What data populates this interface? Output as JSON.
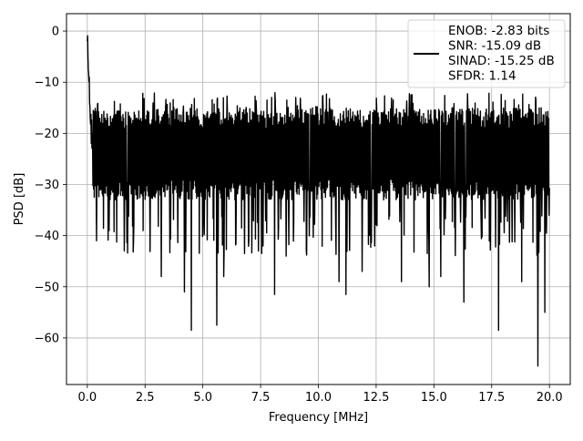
{
  "chart_data": {
    "type": "line",
    "title": "",
    "xlabel": "Frequency [MHz]",
    "ylabel": "PSD [dB]",
    "xlim": [
      -0.9,
      20.9
    ],
    "ylim": [
      -69.1,
      3.4
    ],
    "xticks": [
      0.0,
      2.5,
      5.0,
      7.5,
      10.0,
      12.5,
      15.0,
      17.5,
      20.0
    ],
    "xtick_labels": [
      "0.0",
      "2.5",
      "5.0",
      "7.5",
      "10.0",
      "12.5",
      "15.0",
      "17.5",
      "20.0"
    ],
    "yticks": [
      0,
      -10,
      -20,
      -30,
      -40,
      -50,
      -60
    ],
    "ytick_labels": [
      "0",
      "−10",
      "−20",
      "−30",
      "−40",
      "−50",
      "−60"
    ],
    "grid": true,
    "legend_position": "top-right",
    "series": [
      {
        "color": "#000000",
        "description_peak": {
          "x": 0.0,
          "y": 0.0
        },
        "noise_floor_center_db": -25,
        "noise_band_db": [
          -31,
          -17
        ],
        "x_range": [
          0.0,
          20.0
        ],
        "deep_dips": [
          {
            "x": 0.4,
            "y": -41
          },
          {
            "x": 0.95,
            "y": -39
          },
          {
            "x": 1.6,
            "y": -43
          },
          {
            "x": 2.0,
            "y": -41
          },
          {
            "x": 3.2,
            "y": -48
          },
          {
            "x": 4.2,
            "y": -51
          },
          {
            "x": 4.5,
            "y": -58.5
          },
          {
            "x": 5.6,
            "y": -57.5
          },
          {
            "x": 5.9,
            "y": -48
          },
          {
            "x": 6.8,
            "y": -43.5
          },
          {
            "x": 7.4,
            "y": -43
          },
          {
            "x": 8.1,
            "y": -51.5
          },
          {
            "x": 8.6,
            "y": -44
          },
          {
            "x": 10.9,
            "y": -49
          },
          {
            "x": 11.2,
            "y": -51.5
          },
          {
            "x": 11.9,
            "y": -47
          },
          {
            "x": 13.6,
            "y": -49
          },
          {
            "x": 14.8,
            "y": -50
          },
          {
            "x": 15.3,
            "y": -48
          },
          {
            "x": 16.3,
            "y": -53
          },
          {
            "x": 17.8,
            "y": -58.5
          },
          {
            "x": 18.8,
            "y": -49
          },
          {
            "x": 19.5,
            "y": -65.5
          },
          {
            "x": 19.8,
            "y": -55
          }
        ],
        "values_note": ""
      }
    ],
    "legend": {
      "lines": [
        "ENOB: -2.83 bits",
        "SNR: -15.09 dB",
        "SINAD: -15.25 dB",
        "SFDR: 1.14"
      ]
    }
  }
}
